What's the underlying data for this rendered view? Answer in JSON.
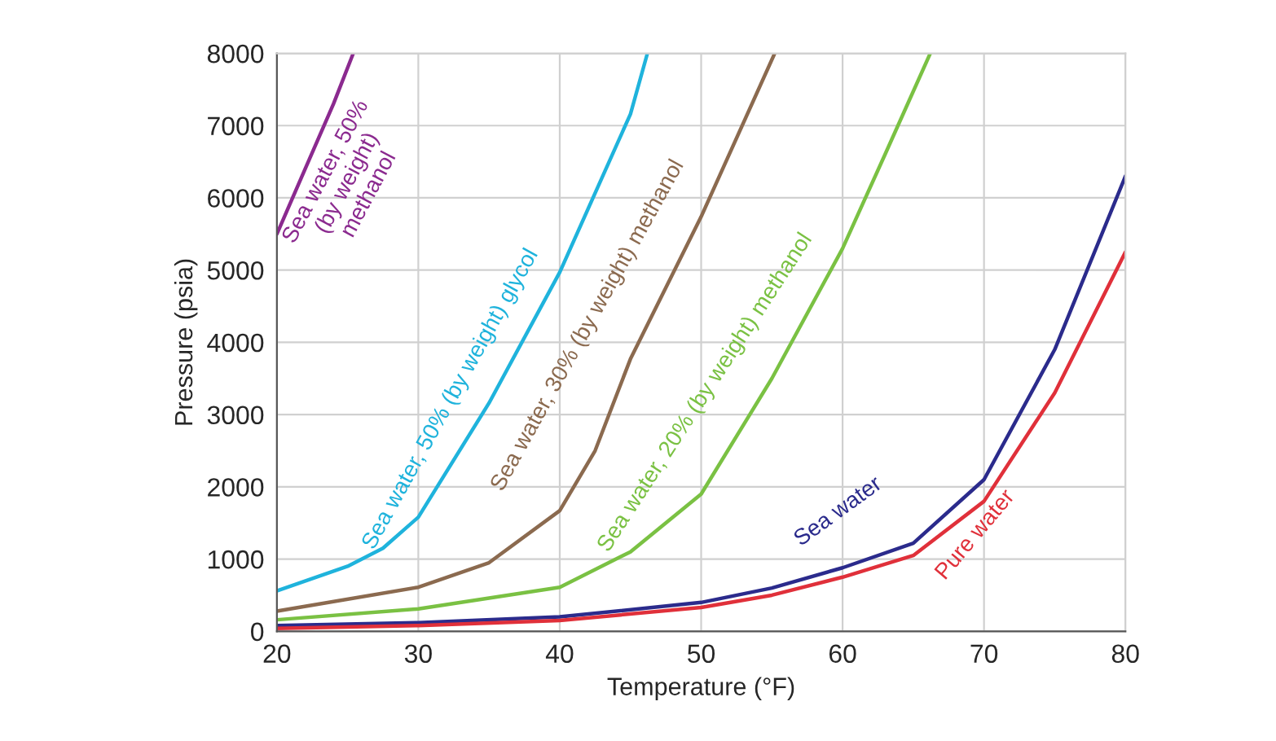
{
  "chart_data": {
    "type": "line",
    "xlabel": "Temperature (°F)",
    "ylabel": "Pressure (psia)",
    "xlim": [
      20,
      80
    ],
    "xticks": [
      20,
      30,
      40,
      50,
      60,
      70,
      80
    ],
    "ylim": [
      0,
      8000
    ],
    "yticks": [
      0,
      1000,
      2000,
      3000,
      4000,
      5000,
      6000,
      7000,
      8000
    ],
    "grid": true,
    "legend": false,
    "series": [
      {
        "name": "Sea water, 50%\n(by weight)\nmethanol",
        "color": "#8b2a8f",
        "x": [
          20,
          22,
          24,
          25.4
        ],
        "values": [
          5500,
          6400,
          7300,
          8000
        ]
      },
      {
        "name": "Sea water, 50% (by weight) glycol",
        "color": "#1fb3dc",
        "x": [
          20,
          25,
          27.5,
          30,
          35,
          40,
          45,
          46.2
        ],
        "values": [
          560,
          900,
          1150,
          1580,
          3160,
          4970,
          7160,
          8000
        ]
      },
      {
        "name": "Sea water, 30% (by weight) methanol",
        "color": "#8b6a4f",
        "x": [
          20,
          30,
          35,
          40,
          42.5,
          45,
          50,
          55.2
        ],
        "values": [
          280,
          610,
          950,
          1670,
          2500,
          3770,
          5740,
          8000
        ]
      },
      {
        "name": "Sea water, 20% (by weight) methanol",
        "color": "#7ac143",
        "x": [
          20,
          30,
          40,
          45,
          50,
          55,
          60,
          63,
          66.2
        ],
        "values": [
          160,
          310,
          610,
          1100,
          1900,
          3500,
          5300,
          6600,
          8000
        ]
      },
      {
        "name": "Sea water",
        "color": "#2b2b8c",
        "x": [
          20,
          30,
          40,
          50,
          55,
          60,
          65,
          70,
          75,
          80
        ],
        "values": [
          80,
          120,
          200,
          400,
          600,
          880,
          1220,
          2100,
          3900,
          6300
        ]
      },
      {
        "name": "Pure water",
        "color": "#e0303a",
        "x": [
          20,
          30,
          40,
          50,
          55,
          60,
          65,
          70,
          75,
          80
        ],
        "values": [
          40,
          80,
          150,
          330,
          500,
          750,
          1050,
          1800,
          3300,
          5250
        ]
      }
    ]
  }
}
